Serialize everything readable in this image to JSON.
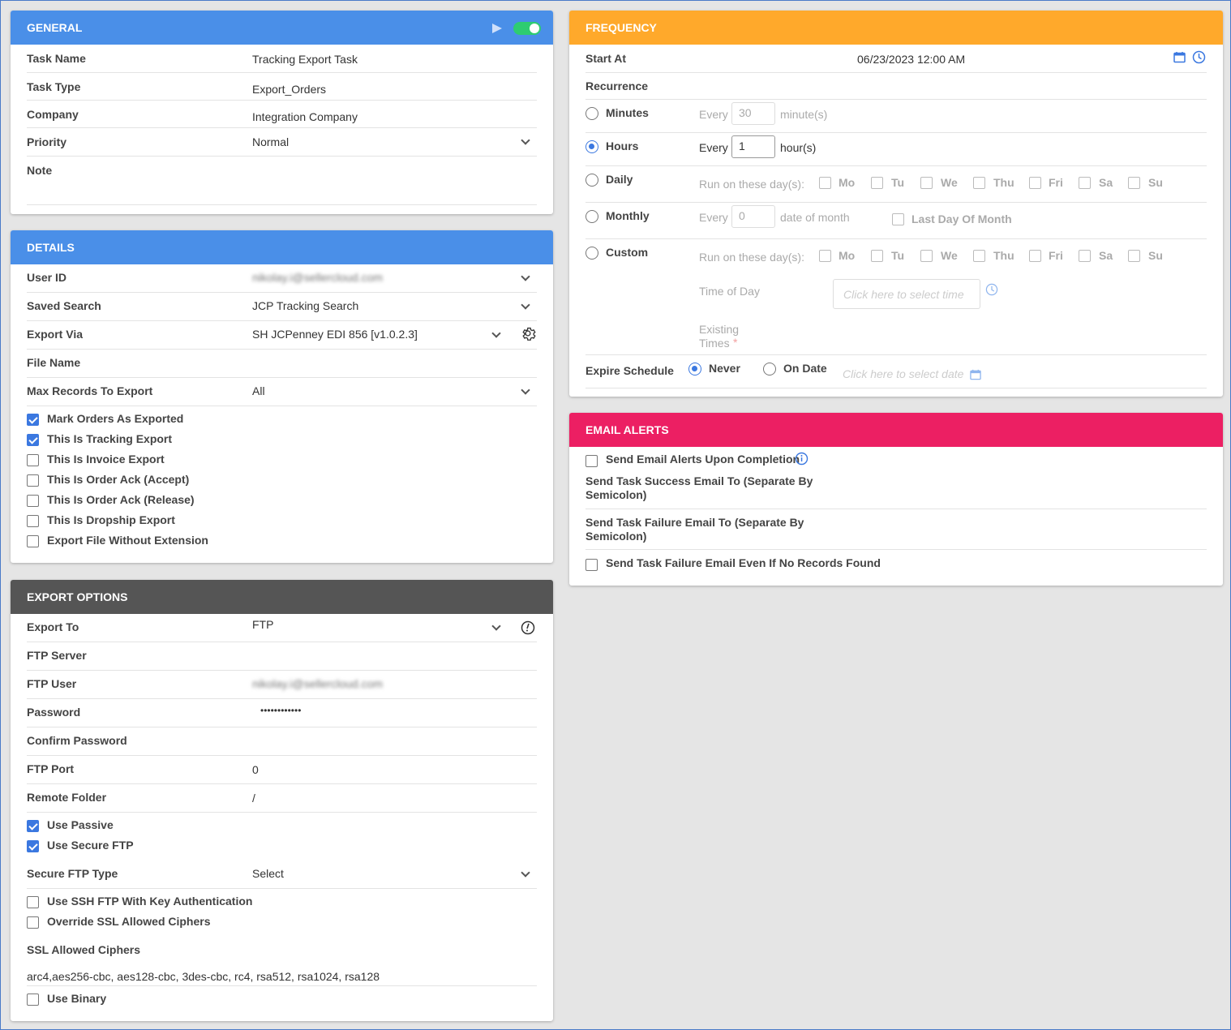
{
  "general": {
    "title": "GENERAL",
    "rows": [
      {
        "label": "Task Name",
        "value": "Tracking Export Task"
      },
      {
        "label": "Task Type",
        "value": "Export_Orders"
      },
      {
        "label": "Company",
        "value": "Integration Company"
      },
      {
        "label": "Priority",
        "value": "Normal"
      },
      {
        "label": "Note",
        "value": ""
      }
    ],
    "enabled": true
  },
  "details": {
    "title": "DETAILS",
    "user_id_label": "User ID",
    "user_id_value": "nikolay.i@sellercloud.com",
    "saved_search_label": "Saved Search",
    "saved_search_value": "JCP Tracking Search",
    "export_via_label": "Export Via",
    "export_via_value": "SH JCPenney EDI 856 [v1.0.2.3]",
    "file_name_label": "File Name",
    "max_records_label": "Max Records To Export",
    "max_records_value": "All",
    "checkboxes": [
      {
        "label": "Mark Orders As Exported",
        "checked": true
      },
      {
        "label": "This Is Tracking Export",
        "checked": true
      },
      {
        "label": "This Is Invoice Export",
        "checked": false
      },
      {
        "label": "This Is Order Ack (Accept)",
        "checked": false
      },
      {
        "label": "This Is Order Ack (Release)",
        "checked": false
      },
      {
        "label": "This Is Dropship Export",
        "checked": false
      },
      {
        "label": "Export File Without Extension",
        "checked": false
      }
    ]
  },
  "export_options": {
    "title": "EXPORT OPTIONS",
    "export_to_label": "Export To",
    "export_to_value": "FTP",
    "ftp_server_label": "FTP Server",
    "ftp_user_label": "FTP User",
    "ftp_user_value": "nikolay.i@sellercloud.com",
    "password_label": "Password",
    "password_value": "••••••••••••",
    "confirm_password_label": "Confirm Password",
    "ftp_port_label": "FTP Port",
    "ftp_port_value": "0",
    "remote_folder_label": "Remote Folder",
    "remote_folder_value": "/",
    "use_passive_label": "Use Passive",
    "use_secure_ftp_label": "Use Secure FTP",
    "secure_ftp_type_label": "Secure FTP Type",
    "secure_ftp_type_value": "Select",
    "use_ssh_label": "Use SSH FTP With Key Authentication",
    "override_ssl_label": "Override SSL Allowed Ciphers",
    "ssl_ciphers_label": "SSL Allowed Ciphers",
    "ssl_ciphers_value": "arc4,aes256-cbc, aes128-cbc, 3des-cbc, rc4, rsa512, rsa1024, rsa128",
    "use_binary_label": "Use Binary"
  },
  "frequency": {
    "title": "FREQUENCY",
    "start_at_label": "Start At",
    "start_at_value": "06/23/2023 12:00 AM",
    "recurrence_label": "Recurrence",
    "minutes_label": "Minutes",
    "hours_label": "Hours",
    "daily_label": "Daily",
    "monthly_label": "Monthly",
    "custom_label": "Custom",
    "every": "Every",
    "minutes_value": "30",
    "minutes_unit": "minute(s)",
    "hours_value": "1",
    "hours_unit": "hour(s)",
    "run_on_days": "Run on these day(s):",
    "days": [
      "Mo",
      "Tu",
      "We",
      "Thu",
      "Fri",
      "Sa",
      "Su"
    ],
    "monthly_value": "0",
    "date_of_month": "date of month",
    "last_day_of_month": "Last Day Of Month",
    "time_of_day": "Time of Day",
    "time_placeholder": "Click here to select time",
    "existing_times_1": "Existing",
    "existing_times_2": "Times",
    "required_mark": "*",
    "expire_schedule_label": "Expire Schedule",
    "never_label": "Never",
    "on_date_label": "On Date",
    "date_placeholder": "Click here to select date",
    "selected_recurrence": "Hours",
    "selected_expire": "Never"
  },
  "email_alerts": {
    "title": "EMAIL ALERTS",
    "send_alerts_label": "Send Email Alerts Upon Completion",
    "success_label_1": "Send Task Success Email To (Separate By",
    "success_label_2": "Semicolon)",
    "failure_label_1": "Send Task Failure Email To (Separate By",
    "failure_label_2": "Semicolon)",
    "failure_no_records_label": "Send Task Failure Email Even If No Records Found"
  },
  "colors": {
    "blue_header": "#4a8fe8",
    "orange_header": "#ffa92b",
    "dark_header": "#555555",
    "pink_header": "#ec1f63",
    "accent": "#3b78e0",
    "toggle_on": "#2ecc71"
  }
}
